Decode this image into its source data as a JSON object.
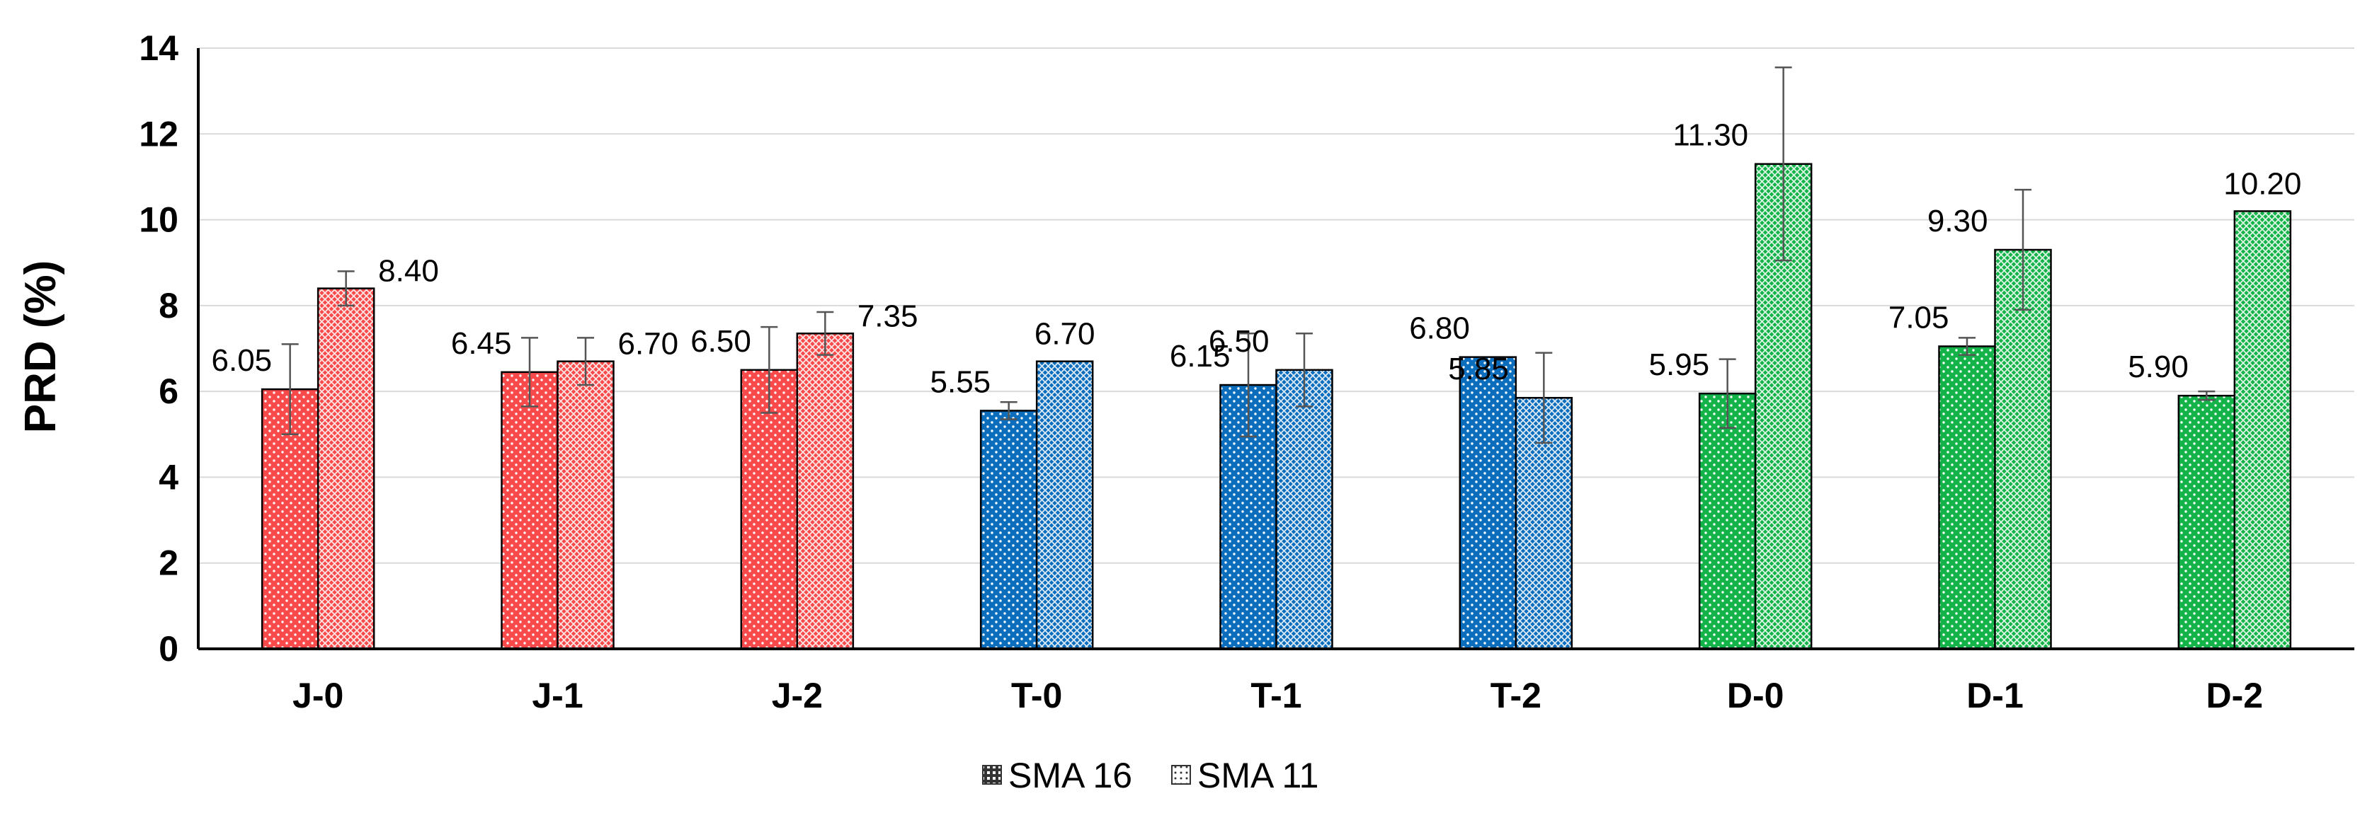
{
  "chart_data": {
    "type": "bar",
    "ylabel": "PRD (%)",
    "xlabel": "",
    "ylim": [
      0,
      14
    ],
    "yticks": [
      0,
      2,
      4,
      6,
      8,
      10,
      12,
      14
    ],
    "grid": true,
    "legend_position": "bottom",
    "categories": [
      "J-0",
      "J-1",
      "J-2",
      "T-0",
      "T-1",
      "T-2",
      "D-0",
      "D-1",
      "D-2"
    ],
    "category_colors": [
      "#f84a4a",
      "#f84a4a",
      "#f84a4a",
      "#0b6dbb",
      "#0b6dbb",
      "#0b6dbb",
      "#14b34a",
      "#14b34a",
      "#14b34a"
    ],
    "series": [
      {
        "name": "SMA 16",
        "pattern": "sparse-dots",
        "values": [
          6.05,
          6.45,
          6.5,
          5.55,
          6.15,
          6.8,
          5.95,
          7.05,
          5.9
        ],
        "labels": [
          "6.05",
          "6.45",
          "6.50",
          "5.55",
          "6.15",
          "6.80",
          "5.95",
          "7.05",
          "5.90"
        ],
        "errors": [
          1.05,
          0.8,
          1.0,
          0.2,
          1.2,
          0.0,
          0.8,
          0.2,
          0.1
        ]
      },
      {
        "name": "SMA 11",
        "pattern": "dense-crosshatch",
        "values": [
          8.4,
          6.7,
          7.35,
          6.7,
          6.5,
          5.85,
          11.3,
          9.3,
          10.2
        ],
        "labels": [
          "8.40",
          "6.70",
          "7.35",
          "6.70",
          "6.50",
          "5.85",
          "11.30",
          "9.30",
          "10.20"
        ],
        "errors": [
          0.4,
          0.55,
          0.5,
          0.0,
          0.85,
          1.05,
          2.25,
          1.4,
          0.0
        ]
      }
    ]
  }
}
